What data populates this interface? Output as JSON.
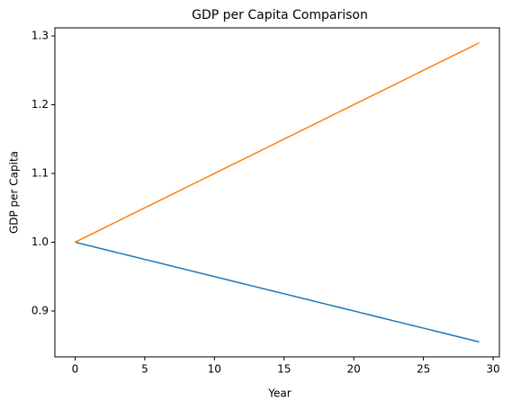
{
  "chart_data": {
    "type": "line",
    "title": "GDP per Capita Comparison",
    "x_label": "Year",
    "y_label": "GDP per Capita",
    "x": [
      0,
      1,
      2,
      3,
      4,
      5,
      6,
      7,
      8,
      9,
      10,
      11,
      12,
      13,
      14,
      15,
      16,
      17,
      18,
      19,
      20,
      21,
      22,
      23,
      24,
      25,
      26,
      27,
      28,
      29
    ],
    "series": [
      {
        "color": "#1f77b4",
        "values": [
          1,
          0.995,
          0.99,
          0.985,
          0.98,
          0.975,
          0.97,
          0.965,
          0.96,
          0.955,
          0.95,
          0.945,
          0.94,
          0.935,
          0.93,
          0.925,
          0.92,
          0.915,
          0.91,
          0.905,
          0.9,
          0.895,
          0.89,
          0.885,
          0.88,
          0.875,
          0.87,
          0.865,
          0.86,
          0.855
        ]
      },
      {
        "color": "#ff7f0e",
        "values": [
          1,
          1.01,
          1.02,
          1.03,
          1.04,
          1.05,
          1.06,
          1.07,
          1.08,
          1.09,
          1.1,
          1.11,
          1.12,
          1.13,
          1.14,
          1.15,
          1.16,
          1.17,
          1.18,
          1.19,
          1.2,
          1.21,
          1.22,
          1.23,
          1.24,
          1.25,
          1.26,
          1.27,
          1.28,
          1.29
        ]
      }
    ],
    "xlim": [
      -1.45,
      30.45
    ],
    "xticks": [
      0,
      5,
      10,
      15,
      20,
      25,
      30
    ],
    "ylim": [
      0.83325,
      1.31175
    ],
    "yticks": [
      0.9,
      {
        "value": 1,
        "label": "1.0"
      },
      1.1,
      1.2,
      1.3
    ]
  }
}
